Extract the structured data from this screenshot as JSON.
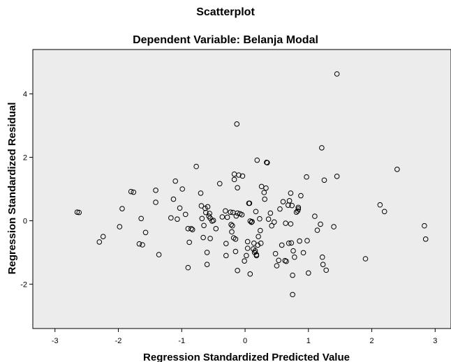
{
  "chart_data": {
    "type": "scatter",
    "title": "Scatterplot",
    "subtitle": "Dependent Variable: Belanja Modal",
    "xlabel": "Regression Standardized Predicted Value",
    "ylabel": "Regression Standardized Residual",
    "xlim": [
      -3.35,
      3.25
    ],
    "ylim": [
      -3.4,
      5.4
    ],
    "xticks": [
      -3,
      -2,
      -1,
      0,
      1,
      2,
      3
    ],
    "yticks": [
      -2,
      0,
      2,
      4
    ],
    "grid": false,
    "background": "#ececec",
    "marker_color": "#000000",
    "points": [
      [
        -2.65,
        0.27
      ],
      [
        -2.62,
        0.26
      ],
      [
        -2.3,
        -0.67
      ],
      [
        -2.24,
        -0.5
      ],
      [
        -1.98,
        -0.19
      ],
      [
        -1.94,
        0.38
      ],
      [
        -1.8,
        0.92
      ],
      [
        -1.76,
        0.9
      ],
      [
        -1.67,
        -0.73
      ],
      [
        -1.64,
        0.07
      ],
      [
        -1.62,
        -0.76
      ],
      [
        -1.57,
        -0.37
      ],
      [
        -1.41,
        0.96
      ],
      [
        -1.41,
        0.58
      ],
      [
        -1.36,
        -1.07
      ],
      [
        -1.17,
        0.09
      ],
      [
        -1.13,
        0.68
      ],
      [
        -1.1,
        1.25
      ],
      [
        -1.07,
        0.05
      ],
      [
        -1.03,
        0.4
      ],
      [
        -0.99,
        1.0
      ],
      [
        -0.94,
        0.2
      ],
      [
        -0.9,
        -0.25
      ],
      [
        -0.9,
        -1.48
      ],
      [
        -0.88,
        -0.68
      ],
      [
        -0.85,
        -0.25
      ],
      [
        -0.83,
        -0.28
      ],
      [
        -0.77,
        1.71
      ],
      [
        -0.7,
        0.87
      ],
      [
        -0.69,
        0.47
      ],
      [
        -0.68,
        0.07
      ],
      [
        -0.66,
        -0.53
      ],
      [
        -0.65,
        -0.15
      ],
      [
        -0.63,
        0.39
      ],
      [
        -0.62,
        0.26
      ],
      [
        -0.6,
        -1.0
      ],
      [
        -0.6,
        -1.38
      ],
      [
        -0.59,
        0.44
      ],
      [
        -0.57,
        0.14
      ],
      [
        -0.56,
        0.23
      ],
      [
        -0.55,
        0.08
      ],
      [
        -0.55,
        -0.56
      ],
      [
        -0.52,
        -0.01
      ],
      [
        -0.5,
        0.01
      ],
      [
        -0.46,
        -0.25
      ],
      [
        -0.4,
        1.17
      ],
      [
        -0.36,
        0.12
      ],
      [
        -0.31,
        0.31
      ],
      [
        -0.3,
        -0.72
      ],
      [
        -0.3,
        -1.1
      ],
      [
        -0.28,
        0.11
      ],
      [
        -0.23,
        0.27
      ],
      [
        -0.22,
        -0.12
      ],
      [
        -0.21,
        -0.35
      ],
      [
        -0.2,
        -0.16
      ],
      [
        -0.19,
        0.26
      ],
      [
        -0.18,
        -0.54
      ],
      [
        -0.17,
        1.47
      ],
      [
        -0.17,
        1.3
      ],
      [
        -0.15,
        -0.97
      ],
      [
        -0.15,
        -0.58
      ],
      [
        -0.14,
        0.15
      ],
      [
        -0.12,
        0.24
      ],
      [
        -0.12,
        1.04
      ],
      [
        -0.13,
        3.05
      ],
      [
        -0.12,
        -1.57
      ],
      [
        -0.1,
        1.44
      ],
      [
        -0.08,
        0.22
      ],
      [
        -0.05,
        0.19
      ],
      [
        -0.04,
        1.41
      ],
      [
        -0.01,
        -1.27
      ],
      [
        0.02,
        -1.1
      ],
      [
        0.04,
        -0.66
      ],
      [
        0.04,
        -0.87
      ],
      [
        0.06,
        0.55
      ],
      [
        0.07,
        0.55
      ],
      [
        0.08,
        -0.01
      ],
      [
        0.08,
        -1.68
      ],
      [
        0.1,
        -0.05
      ],
      [
        0.11,
        -0.03
      ],
      [
        0.13,
        -0.89
      ],
      [
        0.14,
        -0.71
      ],
      [
        0.15,
        -1.0
      ],
      [
        0.16,
        -0.95
      ],
      [
        0.17,
        0.29
      ],
      [
        0.18,
        -1.07
      ],
      [
        0.18,
        -1.1
      ],
      [
        0.19,
        1.91
      ],
      [
        0.2,
        -0.77
      ],
      [
        0.21,
        -0.5
      ],
      [
        0.23,
        0.06
      ],
      [
        0.24,
        -0.31
      ],
      [
        0.25,
        -0.71
      ],
      [
        0.26,
        1.08
      ],
      [
        0.3,
        0.89
      ],
      [
        0.31,
        0.68
      ],
      [
        0.33,
        1.03
      ],
      [
        0.34,
        1.84
      ],
      [
        0.35,
        1.83
      ],
      [
        0.37,
        0.05
      ],
      [
        0.4,
        0.24
      ],
      [
        0.42,
        -0.16
      ],
      [
        0.46,
        -0.04
      ],
      [
        0.48,
        -1.04
      ],
      [
        0.5,
        -1.42
      ],
      [
        0.53,
        -1.25
      ],
      [
        0.55,
        0.37
      ],
      [
        0.58,
        -0.77
      ],
      [
        0.6,
        0.6
      ],
      [
        0.63,
        -1.26
      ],
      [
        0.64,
        -0.08
      ],
      [
        0.65,
        -1.28
      ],
      [
        0.68,
        0.49
      ],
      [
        0.69,
        -0.71
      ],
      [
        0.7,
        0.63
      ],
      [
        0.72,
        0.87
      ],
      [
        0.72,
        -0.1
      ],
      [
        0.73,
        -0.7
      ],
      [
        0.74,
        0.48
      ],
      [
        0.75,
        -1.72
      ],
      [
        0.75,
        -2.33
      ],
      [
        0.76,
        -0.95
      ],
      [
        0.78,
        -1.15
      ],
      [
        0.81,
        0.27
      ],
      [
        0.83,
        0.31
      ],
      [
        0.84,
        0.42
      ],
      [
        0.84,
        0.37
      ],
      [
        0.86,
        -0.64
      ],
      [
        0.88,
        0.79
      ],
      [
        0.92,
        -1.01
      ],
      [
        0.97,
        1.38
      ],
      [
        0.98,
        -0.63
      ],
      [
        1.0,
        -1.65
      ],
      [
        1.1,
        0.14
      ],
      [
        1.14,
        -0.3
      ],
      [
        1.19,
        -0.11
      ],
      [
        1.21,
        2.3
      ],
      [
        1.22,
        -1.15
      ],
      [
        1.23,
        -1.38
      ],
      [
        1.25,
        1.28
      ],
      [
        1.28,
        -1.56
      ],
      [
        1.4,
        -0.19
      ],
      [
        1.45,
        1.4
      ],
      [
        1.45,
        4.63
      ],
      [
        1.9,
        -1.2
      ],
      [
        2.13,
        0.5
      ],
      [
        2.2,
        0.29
      ],
      [
        2.4,
        1.62
      ],
      [
        2.83,
        -0.16
      ],
      [
        2.85,
        -0.58
      ]
    ]
  }
}
